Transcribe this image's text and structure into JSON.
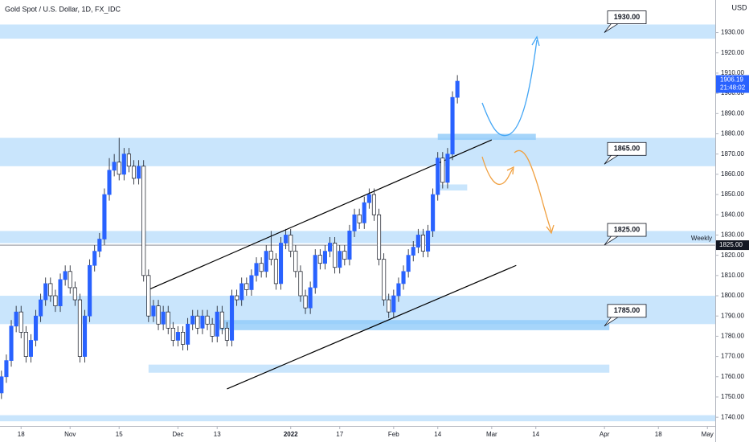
{
  "chart_data": {
    "type": "candlestick",
    "title": "Gold Spot / U.S. Dollar, 1D, FX_IDC",
    "currency": "USD",
    "up_color": "#2962ff",
    "down_color": "#ffffff",
    "open": [
      1752,
      1760,
      1768,
      1785,
      1792,
      1782,
      1770,
      1778,
      1790,
      1798,
      1806,
      1800,
      1795,
      1808,
      1812,
      1804,
      1798,
      1770,
      1790,
      1815,
      1822,
      1828,
      1850,
      1862,
      1866,
      1860,
      1870,
      1864,
      1858,
      1864,
      1810,
      1790,
      1795,
      1786,
      1792,
      1784,
      1778,
      1782,
      1776,
      1786,
      1790,
      1784,
      1790,
      1786,
      1780,
      1792,
      1784,
      1778,
      1800,
      1798,
      1806,
      1803,
      1810,
      1816,
      1812,
      1822,
      1818,
      1806,
      1826,
      1830,
      1822,
      1812,
      1800,
      1794,
      1804,
      1820,
      1816,
      1822,
      1826,
      1814,
      1822,
      1818,
      1832,
      1840,
      1836,
      1846,
      1850,
      1840,
      1818,
      1798,
      1792,
      1800,
      1806,
      1812,
      1820,
      1824,
      1830,
      1822,
      1832,
      1850,
      1868,
      1856,
      1870,
      1898
    ],
    "high": [
      1763,
      1771,
      1788,
      1795,
      1795,
      1785,
      1781,
      1793,
      1801,
      1809,
      1809,
      1803,
      1811,
      1815,
      1815,
      1807,
      1801,
      1793,
      1818,
      1825,
      1831,
      1853,
      1868,
      1870,
      1878,
      1873,
      1873,
      1867,
      1867,
      1867,
      1813,
      1798,
      1798,
      1795,
      1795,
      1787,
      1785,
      1785,
      1789,
      1793,
      1793,
      1793,
      1793,
      1789,
      1795,
      1795,
      1787,
      1803,
      1803,
      1809,
      1809,
      1813,
      1819,
      1819,
      1825,
      1832,
      1821,
      1829,
      1833,
      1833,
      1825,
      1815,
      1803,
      1807,
      1823,
      1823,
      1825,
      1829,
      1829,
      1825,
      1825,
      1835,
      1843,
      1843,
      1849,
      1853,
      1853,
      1843,
      1821,
      1801,
      1803,
      1809,
      1815,
      1823,
      1827,
      1833,
      1833,
      1835,
      1853,
      1871,
      1871,
      1873,
      1901,
      1909
    ],
    "low": [
      1749,
      1757,
      1765,
      1782,
      1779,
      1767,
      1767,
      1775,
      1787,
      1795,
      1797,
      1792,
      1792,
      1805,
      1801,
      1795,
      1767,
      1767,
      1787,
      1812,
      1819,
      1825,
      1847,
      1859,
      1857,
      1857,
      1861,
      1855,
      1855,
      1807,
      1787,
      1787,
      1783,
      1783,
      1781,
      1775,
      1775,
      1773,
      1773,
      1783,
      1781,
      1781,
      1783,
      1777,
      1777,
      1781,
      1775,
      1775,
      1795,
      1795,
      1800,
      1800,
      1807,
      1809,
      1809,
      1815,
      1803,
      1803,
      1823,
      1819,
      1809,
      1797,
      1791,
      1791,
      1801,
      1813,
      1813,
      1819,
      1811,
      1811,
      1815,
      1815,
      1829,
      1833,
      1833,
      1843,
      1837,
      1815,
      1795,
      1789,
      1789,
      1797,
      1803,
      1809,
      1817,
      1821,
      1819,
      1819,
      1829,
      1847,
      1853,
      1853,
      1867,
      1895
    ],
    "close": [
      1760,
      1768,
      1785,
      1792,
      1782,
      1770,
      1778,
      1790,
      1798,
      1806,
      1800,
      1795,
      1808,
      1812,
      1804,
      1798,
      1770,
      1790,
      1815,
      1822,
      1828,
      1850,
      1862,
      1866,
      1860,
      1870,
      1864,
      1858,
      1864,
      1810,
      1790,
      1795,
      1786,
      1792,
      1784,
      1778,
      1782,
      1776,
      1786,
      1790,
      1784,
      1790,
      1786,
      1780,
      1792,
      1784,
      1778,
      1800,
      1798,
      1806,
      1803,
      1810,
      1816,
      1812,
      1822,
      1818,
      1806,
      1826,
      1830,
      1822,
      1812,
      1800,
      1794,
      1804,
      1820,
      1816,
      1822,
      1826,
      1814,
      1822,
      1818,
      1832,
      1840,
      1836,
      1846,
      1850,
      1840,
      1818,
      1798,
      1792,
      1800,
      1806,
      1812,
      1820,
      1824,
      1830,
      1822,
      1832,
      1850,
      1868,
      1856,
      1870,
      1898,
      1906
    ],
    "xlim": [
      -0.3,
      145.6
    ],
    "xticks": [
      {
        "value": 4,
        "label": "18"
      },
      {
        "value": 14,
        "label": "Nov"
      },
      {
        "value": 24,
        "label": "15"
      },
      {
        "value": 36,
        "label": "Dec"
      },
      {
        "value": 44,
        "label": "13"
      },
      {
        "value": 59,
        "label": "2022"
      },
      {
        "value": 69,
        "label": "17"
      },
      {
        "value": 80,
        "label": "Feb"
      },
      {
        "value": 89,
        "label": "14"
      },
      {
        "value": 100,
        "label": "Mar"
      },
      {
        "value": 109,
        "label": "14"
      },
      {
        "value": 123,
        "label": "Apr"
      },
      {
        "value": 134,
        "label": "18"
      },
      {
        "value": 144,
        "label": "May"
      }
    ],
    "ylim": [
      1735.7,
      1946.1
    ],
    "yticks": [
      {
        "value": 1740,
        "label": "1740.00"
      },
      {
        "value": 1750,
        "label": "1750.00"
      },
      {
        "value": 1760,
        "label": "1760.00"
      },
      {
        "value": 1770,
        "label": "1770.00"
      },
      {
        "value": 1780,
        "label": "1780.00"
      },
      {
        "value": 1790,
        "label": "1790.00"
      },
      {
        "value": 1800,
        "label": "1800.00"
      },
      {
        "value": 1810,
        "label": "1810.00"
      },
      {
        "value": 1820,
        "label": "1820.00"
      },
      {
        "value": 1830,
        "label": "1830.00"
      },
      {
        "value": 1840,
        "label": "1840.00"
      },
      {
        "value": 1850,
        "label": "1850.00"
      },
      {
        "value": 1860,
        "label": "1860.00"
      },
      {
        "value": 1870,
        "label": "1870.00"
      },
      {
        "value": 1880,
        "label": "1880.00"
      },
      {
        "value": 1890,
        "label": "1890.00"
      },
      {
        "value": 1900,
        "label": "1900.00"
      },
      {
        "value": 1910,
        "label": "1910.00"
      },
      {
        "value": 1920,
        "label": "1920.00"
      },
      {
        "value": 1930,
        "label": "1930.00"
      }
    ],
    "zones": [
      {
        "low": 1927,
        "high": 1934,
        "color": "#bbdefb"
      },
      {
        "low": 1864,
        "high": 1878,
        "color": "#bbdefb"
      },
      {
        "low": 1877,
        "high": 1880,
        "start": 89,
        "end": 109,
        "color": "#90caf9"
      },
      {
        "low": 1852,
        "high": 1855,
        "start": 89,
        "end": 95,
        "color": "#bbdefb"
      },
      {
        "low": 1826,
        "high": 1832,
        "color": "#bbdefb"
      },
      {
        "low": 1786,
        "high": 1800,
        "color": "#bbdefb"
      },
      {
        "low": 1783,
        "high": 1788,
        "start": 44,
        "end": 124,
        "color": "#90caf9"
      },
      {
        "low": 1762,
        "high": 1766,
        "start": 30,
        "end": 124,
        "color": "#bbdefb"
      },
      {
        "low": 1738,
        "high": 1741,
        "color": "#bbdefb"
      }
    ],
    "trendlines": [
      {
        "start": 30,
        "start_price": 1803,
        "end": 100,
        "end_price": 1877
      },
      {
        "start": 46,
        "start_price": 1754,
        "end": 105,
        "end_price": 1815
      }
    ],
    "callouts": [
      {
        "value": 1930,
        "label": "1930.00"
      },
      {
        "value": 1865,
        "label": "1865.00"
      },
      {
        "value": 1825,
        "label": "1825.00"
      },
      {
        "value": 1785,
        "label": "1785.00"
      }
    ],
    "weekly": {
      "value": 1825,
      "label": "1825.00",
      "name": "Weekly"
    },
    "last": {
      "value": 1906.19,
      "time": "21:48:02"
    }
  }
}
